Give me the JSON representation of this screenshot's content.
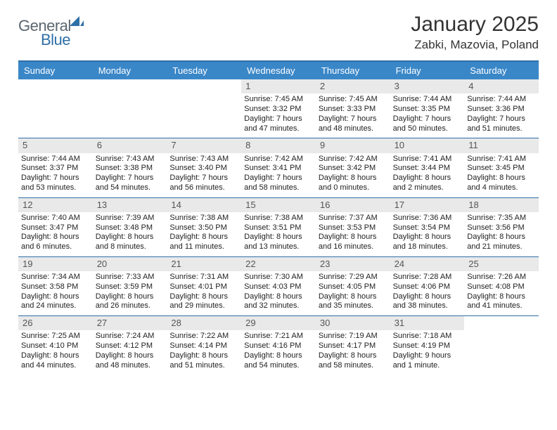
{
  "brand": {
    "part1": "General",
    "part2": "Blue"
  },
  "title": "January 2025",
  "location": "Zabki, Mazovia, Poland",
  "colors": {
    "header_bg": "#3a87c8",
    "rule": "#2f6fa7",
    "daynum_bg": "#e9e9e9",
    "text": "#222222",
    "logo_gray": "#5b6670",
    "logo_blue": "#2f6fa7"
  },
  "typography": {
    "month_title_pt": 30,
    "location_pt": 17,
    "dayhead_pt": 13,
    "daynum_pt": 13,
    "body_pt": 11
  },
  "day_names": [
    "Sunday",
    "Monday",
    "Tuesday",
    "Wednesday",
    "Thursday",
    "Friday",
    "Saturday"
  ],
  "weeks": [
    [
      null,
      null,
      null,
      {
        "n": "1",
        "sunrise": "7:45 AM",
        "sunset": "3:32 PM",
        "dl": "7 hours and 47 minutes."
      },
      {
        "n": "2",
        "sunrise": "7:45 AM",
        "sunset": "3:33 PM",
        "dl": "7 hours and 48 minutes."
      },
      {
        "n": "3",
        "sunrise": "7:44 AM",
        "sunset": "3:35 PM",
        "dl": "7 hours and 50 minutes."
      },
      {
        "n": "4",
        "sunrise": "7:44 AM",
        "sunset": "3:36 PM",
        "dl": "7 hours and 51 minutes."
      }
    ],
    [
      {
        "n": "5",
        "sunrise": "7:44 AM",
        "sunset": "3:37 PM",
        "dl": "7 hours and 53 minutes."
      },
      {
        "n": "6",
        "sunrise": "7:43 AM",
        "sunset": "3:38 PM",
        "dl": "7 hours and 54 minutes."
      },
      {
        "n": "7",
        "sunrise": "7:43 AM",
        "sunset": "3:40 PM",
        "dl": "7 hours and 56 minutes."
      },
      {
        "n": "8",
        "sunrise": "7:42 AM",
        "sunset": "3:41 PM",
        "dl": "7 hours and 58 minutes."
      },
      {
        "n": "9",
        "sunrise": "7:42 AM",
        "sunset": "3:42 PM",
        "dl": "8 hours and 0 minutes."
      },
      {
        "n": "10",
        "sunrise": "7:41 AM",
        "sunset": "3:44 PM",
        "dl": "8 hours and 2 minutes."
      },
      {
        "n": "11",
        "sunrise": "7:41 AM",
        "sunset": "3:45 PM",
        "dl": "8 hours and 4 minutes."
      }
    ],
    [
      {
        "n": "12",
        "sunrise": "7:40 AM",
        "sunset": "3:47 PM",
        "dl": "8 hours and 6 minutes."
      },
      {
        "n": "13",
        "sunrise": "7:39 AM",
        "sunset": "3:48 PM",
        "dl": "8 hours and 8 minutes."
      },
      {
        "n": "14",
        "sunrise": "7:38 AM",
        "sunset": "3:50 PM",
        "dl": "8 hours and 11 minutes."
      },
      {
        "n": "15",
        "sunrise": "7:38 AM",
        "sunset": "3:51 PM",
        "dl": "8 hours and 13 minutes."
      },
      {
        "n": "16",
        "sunrise": "7:37 AM",
        "sunset": "3:53 PM",
        "dl": "8 hours and 16 minutes."
      },
      {
        "n": "17",
        "sunrise": "7:36 AM",
        "sunset": "3:54 PM",
        "dl": "8 hours and 18 minutes."
      },
      {
        "n": "18",
        "sunrise": "7:35 AM",
        "sunset": "3:56 PM",
        "dl": "8 hours and 21 minutes."
      }
    ],
    [
      {
        "n": "19",
        "sunrise": "7:34 AM",
        "sunset": "3:58 PM",
        "dl": "8 hours and 24 minutes."
      },
      {
        "n": "20",
        "sunrise": "7:33 AM",
        "sunset": "3:59 PM",
        "dl": "8 hours and 26 minutes."
      },
      {
        "n": "21",
        "sunrise": "7:31 AM",
        "sunset": "4:01 PM",
        "dl": "8 hours and 29 minutes."
      },
      {
        "n": "22",
        "sunrise": "7:30 AM",
        "sunset": "4:03 PM",
        "dl": "8 hours and 32 minutes."
      },
      {
        "n": "23",
        "sunrise": "7:29 AM",
        "sunset": "4:05 PM",
        "dl": "8 hours and 35 minutes."
      },
      {
        "n": "24",
        "sunrise": "7:28 AM",
        "sunset": "4:06 PM",
        "dl": "8 hours and 38 minutes."
      },
      {
        "n": "25",
        "sunrise": "7:26 AM",
        "sunset": "4:08 PM",
        "dl": "8 hours and 41 minutes."
      }
    ],
    [
      {
        "n": "26",
        "sunrise": "7:25 AM",
        "sunset": "4:10 PM",
        "dl": "8 hours and 44 minutes."
      },
      {
        "n": "27",
        "sunrise": "7:24 AM",
        "sunset": "4:12 PM",
        "dl": "8 hours and 48 minutes."
      },
      {
        "n": "28",
        "sunrise": "7:22 AM",
        "sunset": "4:14 PM",
        "dl": "8 hours and 51 minutes."
      },
      {
        "n": "29",
        "sunrise": "7:21 AM",
        "sunset": "4:16 PM",
        "dl": "8 hours and 54 minutes."
      },
      {
        "n": "30",
        "sunrise": "7:19 AM",
        "sunset": "4:17 PM",
        "dl": "8 hours and 58 minutes."
      },
      {
        "n": "31",
        "sunrise": "7:18 AM",
        "sunset": "4:19 PM",
        "dl": "9 hours and 1 minute."
      },
      null
    ]
  ]
}
